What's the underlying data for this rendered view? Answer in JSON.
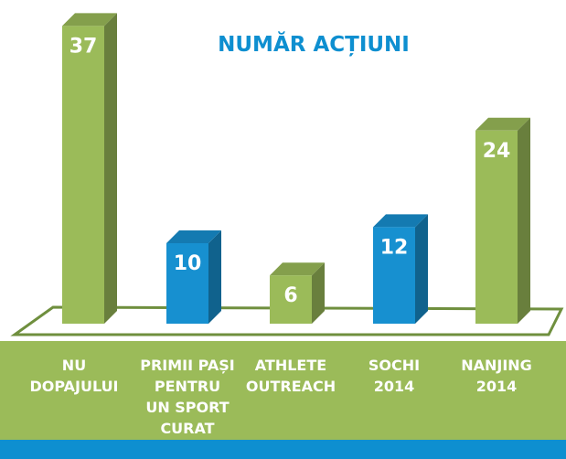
{
  "chart_data": {
    "type": "bar3d",
    "title": "NUMĂR ACȚIUNI",
    "categories": [
      [
        "NU",
        "DOPAJULUI"
      ],
      [
        "PRIMII PAȘI",
        "PENTRU",
        "UN SPORT",
        "CURAT"
      ],
      [
        "ATHLETE",
        "OUTREACH"
      ],
      [
        "SOCHI",
        "2014"
      ],
      [
        "NANJING",
        "2014"
      ]
    ],
    "values": [
      37,
      10,
      6,
      12,
      24
    ],
    "colors": [
      "#9bbb59",
      "#1790d0",
      "#9bbb59",
      "#1790d0",
      "#9bbb59"
    ]
  }
}
